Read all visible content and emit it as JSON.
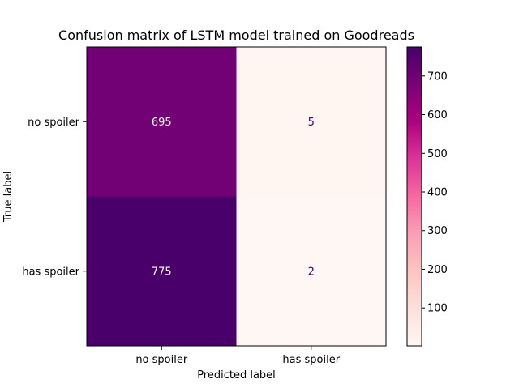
{
  "chart_data": {
    "type": "heatmap",
    "title": "Confusion matrix of LSTM model trained on Goodreads",
    "xlabel": "Predicted label",
    "ylabel": "True label",
    "x_categories": [
      "no spoiler",
      "has spoiler"
    ],
    "y_categories": [
      "no spoiler",
      "has spoiler"
    ],
    "matrix": [
      [
        695,
        5
      ],
      [
        775,
        2
      ]
    ],
    "colormap": "RdPu",
    "colorbar": {
      "min": 2,
      "max": 775,
      "ticks": [
        100,
        200,
        300,
        400,
        500,
        600,
        700
      ]
    }
  },
  "colors": {
    "light_text": "#ffffff",
    "dark_text": "#49006a",
    "axis": "#000000"
  }
}
